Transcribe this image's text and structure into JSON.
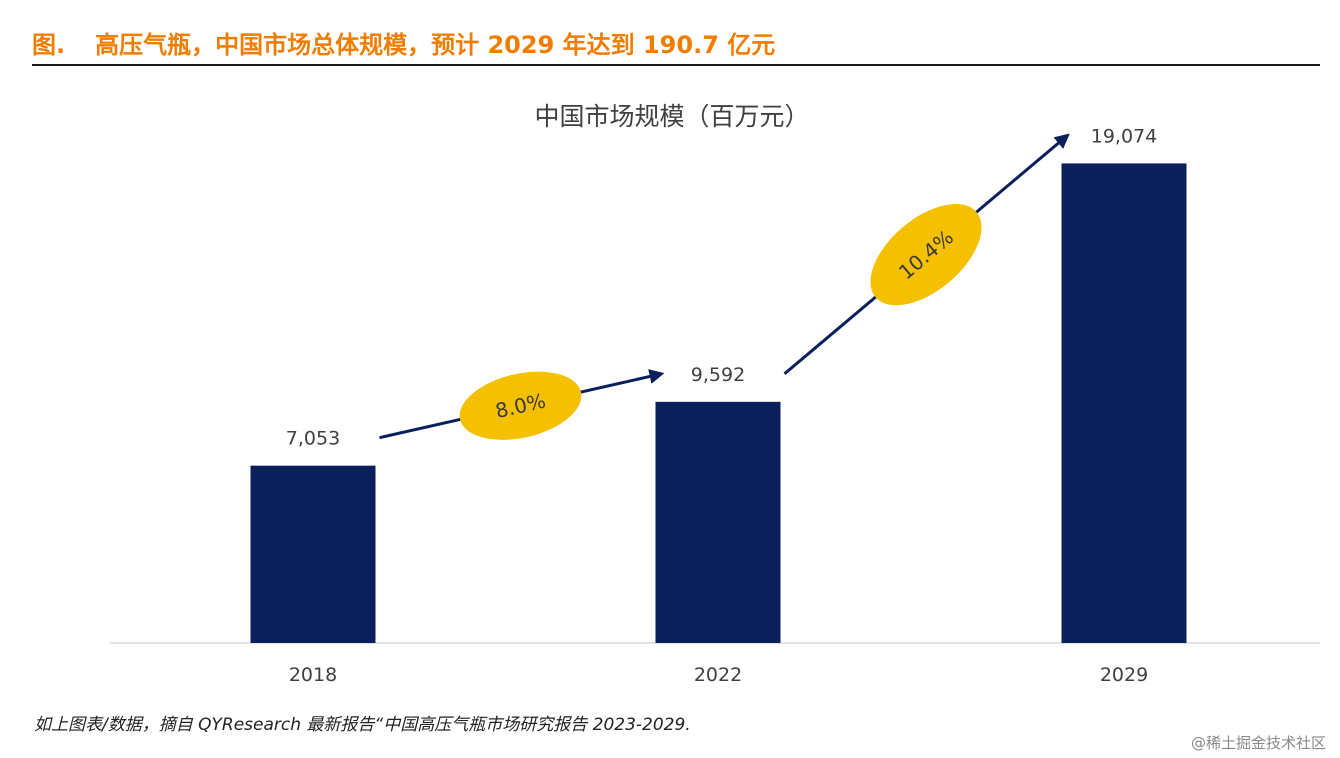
{
  "header": {
    "fig_label": "图.",
    "fig_title": "高压气瓶，中国市场总体规模，预计 2029 年达到 190.7 亿元"
  },
  "chart_data": {
    "type": "bar",
    "title": "中国市场规模（百万元）",
    "categories": [
      "2018",
      "2022",
      "2029"
    ],
    "values": [
      7053,
      9592,
      19074
    ],
    "value_labels": [
      "7,053",
      "9,592",
      "19,074"
    ],
    "growth": [
      {
        "from": "2018",
        "to": "2022",
        "label": "8.0%"
      },
      {
        "from": "2022",
        "to": "2029",
        "label": "10.4%"
      }
    ],
    "ylim": [
      0,
      21000
    ],
    "grid": false,
    "legend": "none",
    "colors": {
      "bar": "#0a1f5c",
      "badge": "#f5c000",
      "arrow": "#0a1f5c",
      "baseline": "#d9d9d9"
    }
  },
  "footer": {
    "source": "如上图表/数据，摘自 QYResearch 最新报告“中国高压气瓶市场研究报告 2023-2029.",
    "watermark": "@稀土掘金技术社区"
  }
}
